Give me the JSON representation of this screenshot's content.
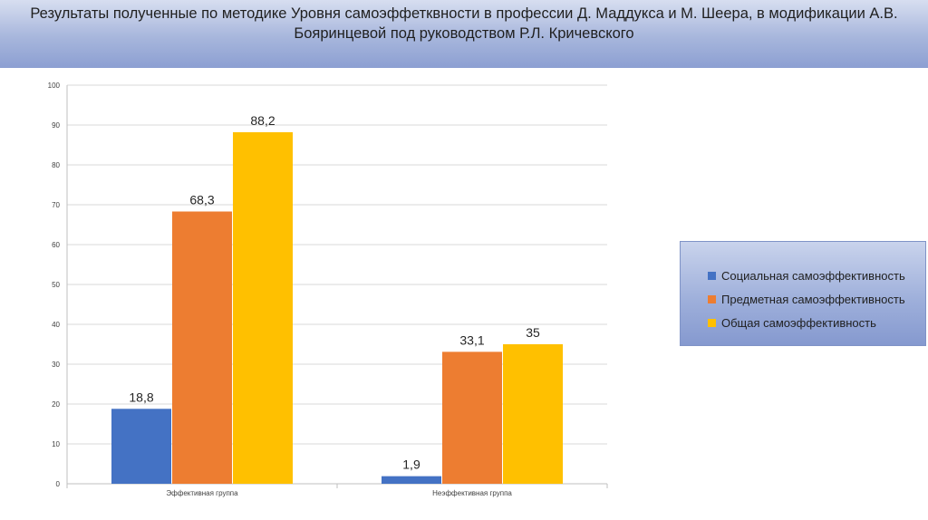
{
  "title": "Результаты полученные по методике Уровня самоэффетквности в профессии Д. Маддукса и М. Шеера, в модификации А.В. Бояринцевой под руководством Р.Л. Кричевского",
  "colors": {
    "title_band": "#9aabd8",
    "social": "#4472c4",
    "subject": "#ed7d31",
    "general": "#ffc000",
    "grid": "#d9d9d9",
    "axis": "#bfbfbf"
  },
  "chart_data": {
    "type": "bar",
    "title": "Результаты полученные по методике Уровня самоэффетквности в профессии Д. Маддукса и М. Шеера, в модификации А.В. Бояринцевой под руководством Р.Л. Кричевского",
    "categories": [
      "Эффективная группа",
      "Неэффективная группа"
    ],
    "series": [
      {
        "name": "Социальная самоэффективность",
        "values": [
          18.8,
          1.9
        ],
        "labels": [
          "18,8",
          "1,9"
        ],
        "color": "#4472c4"
      },
      {
        "name": "Предметная самоэффективность",
        "values": [
          68.3,
          33.1
        ],
        "labels": [
          "68,3",
          "33,1"
        ],
        "color": "#ed7d31"
      },
      {
        "name": "Общая самоэффективность",
        "values": [
          88.2,
          35
        ],
        "labels": [
          "88,2",
          "35"
        ],
        "color": "#ffc000"
      }
    ],
    "ylim": [
      0,
      100
    ],
    "yticks": [
      0,
      10,
      20,
      30,
      40,
      50,
      60,
      70,
      80,
      90,
      100
    ],
    "grid": true,
    "legend_position": "right"
  },
  "legend": {
    "items": [
      {
        "label": "Социальная самоэффективность",
        "color": "#4472c4"
      },
      {
        "label": "Предметная самоэффективность",
        "color": "#ed7d31"
      },
      {
        "label": "Общая самоэффективность",
        "color": "#ffc000"
      }
    ]
  }
}
